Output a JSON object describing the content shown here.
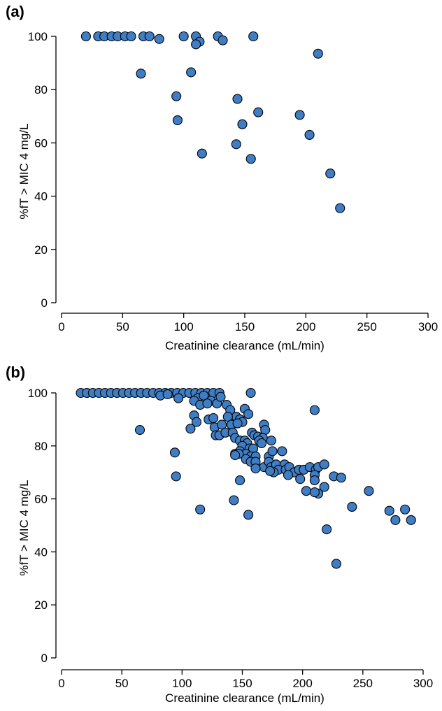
{
  "chart_data": [
    {
      "panel": "(a)",
      "type": "scatter",
      "xlabel": "Creatinine clearance (mL/min)",
      "ylabel": "%fT > MIC 4 mg/L",
      "xlim": [
        0,
        300
      ],
      "ylim": [
        0,
        100
      ],
      "xticks": [
        0,
        50,
        100,
        150,
        200,
        250,
        300
      ],
      "yticks": [
        0,
        20,
        40,
        60,
        80,
        100
      ],
      "grid": false,
      "marker_color": "#3f7ec4",
      "points": [
        [
          20,
          100
        ],
        [
          30,
          100
        ],
        [
          35,
          100
        ],
        [
          41,
          100
        ],
        [
          46,
          100
        ],
        [
          52,
          100
        ],
        [
          57,
          100
        ],
        [
          67,
          100
        ],
        [
          72,
          100
        ],
        [
          80,
          99
        ],
        [
          100,
          100
        ],
        [
          110,
          100
        ],
        [
          128,
          100
        ],
        [
          157,
          100
        ],
        [
          113,
          98
        ],
        [
          110,
          97
        ],
        [
          132,
          98.5
        ],
        [
          210,
          93.5
        ],
        [
          65,
          86
        ],
        [
          106,
          86.5
        ],
        [
          94,
          77.5
        ],
        [
          144,
          76.5
        ],
        [
          161,
          71.5
        ],
        [
          95,
          68.5
        ],
        [
          148,
          67
        ],
        [
          195,
          70.5
        ],
        [
          203,
          63
        ],
        [
          143,
          59.5
        ],
        [
          115,
          56
        ],
        [
          155,
          54
        ],
        [
          220,
          48.5
        ],
        [
          228,
          35.5
        ]
      ]
    },
    {
      "panel": "(b)",
      "type": "scatter",
      "xlabel": "Creatinine clearance (mL/min)",
      "ylabel": "%fT > MIC 4 mg/L",
      "xlim": [
        0,
        300
      ],
      "ylim": [
        0,
        100
      ],
      "xticks": [
        0,
        50,
        100,
        150,
        200,
        250,
        300
      ],
      "yticks": [
        0,
        20,
        40,
        60,
        80,
        100
      ],
      "grid": false,
      "marker_color": "#3f7ec4",
      "points": [
        [
          16,
          100
        ],
        [
          21,
          100
        ],
        [
          26,
          100
        ],
        [
          31,
          100
        ],
        [
          36,
          100
        ],
        [
          41,
          100
        ],
        [
          46,
          100
        ],
        [
          51,
          100
        ],
        [
          56,
          100
        ],
        [
          61,
          100
        ],
        [
          66,
          100
        ],
        [
          71,
          100
        ],
        [
          76,
          100
        ],
        [
          81,
          100
        ],
        [
          86,
          100
        ],
        [
          91,
          100
        ],
        [
          96,
          100
        ],
        [
          101,
          100
        ],
        [
          106,
          100
        ],
        [
          111,
          100
        ],
        [
          116,
          100
        ],
        [
          121,
          100
        ],
        [
          126,
          100
        ],
        [
          131,
          100
        ],
        [
          157,
          100
        ],
        [
          82,
          99
        ],
        [
          88,
          99.5
        ],
        [
          97,
          98
        ],
        [
          113,
          98
        ],
        [
          110,
          97
        ],
        [
          118,
          99
        ],
        [
          124,
          97
        ],
        [
          129,
          96
        ],
        [
          132,
          98.5
        ],
        [
          137,
          95.5
        ],
        [
          115,
          95.5
        ],
        [
          121,
          96
        ],
        [
          140,
          93.5
        ],
        [
          145,
          91
        ],
        [
          152,
          94
        ],
        [
          155,
          92
        ],
        [
          138,
          91
        ],
        [
          110,
          91.5
        ],
        [
          112,
          89
        ],
        [
          122,
          90
        ],
        [
          126,
          90.5
        ],
        [
          148,
          90
        ],
        [
          150,
          89
        ],
        [
          127,
          87
        ],
        [
          133,
          88
        ],
        [
          141,
          88
        ],
        [
          146,
          88.5
        ],
        [
          168,
          88
        ],
        [
          169,
          86
        ],
        [
          107,
          86.5
        ],
        [
          65,
          86
        ],
        [
          128,
          84
        ],
        [
          131,
          84
        ],
        [
          136,
          85
        ],
        [
          142,
          85
        ],
        [
          158,
          85
        ],
        [
          160,
          84
        ],
        [
          163,
          83.5
        ],
        [
          167,
          83
        ],
        [
          144,
          83
        ],
        [
          148,
          82
        ],
        [
          152,
          82
        ],
        [
          154,
          81
        ],
        [
          164,
          82
        ],
        [
          174,
          82
        ],
        [
          150,
          80
        ],
        [
          156,
          79
        ],
        [
          159,
          79
        ],
        [
          166,
          81
        ],
        [
          148,
          78
        ],
        [
          153,
          77
        ],
        [
          157,
          76
        ],
        [
          161,
          76
        ],
        [
          144,
          77
        ],
        [
          147,
          77
        ],
        [
          172,
          76
        ],
        [
          175,
          78
        ],
        [
          183,
          78
        ],
        [
          153,
          75
        ],
        [
          157,
          74
        ],
        [
          161,
          74
        ],
        [
          168,
          72
        ],
        [
          172,
          74
        ],
        [
          174,
          72
        ],
        [
          178,
          73
        ],
        [
          185,
          73
        ],
        [
          180,
          71
        ],
        [
          186,
          71
        ],
        [
          189,
          72
        ],
        [
          193,
          70
        ],
        [
          197,
          71
        ],
        [
          201,
          71
        ],
        [
          206,
          72
        ],
        [
          211,
          71
        ],
        [
          213,
          72
        ],
        [
          218,
          73
        ],
        [
          176,
          70
        ],
        [
          188,
          69
        ],
        [
          210,
          69
        ],
        [
          226,
          68.5
        ],
        [
          232,
          68
        ],
        [
          144,
          76.5
        ],
        [
          161,
          71.5
        ],
        [
          173,
          70.5
        ],
        [
          210,
          67
        ],
        [
          198,
          67.5
        ],
        [
          148,
          67
        ],
        [
          213,
          62
        ],
        [
          203,
          63
        ],
        [
          210,
          62.5
        ],
        [
          218,
          64.5
        ],
        [
          255,
          63
        ],
        [
          241,
          57
        ],
        [
          272,
          55.5
        ],
        [
          285,
          56
        ],
        [
          277,
          52
        ],
        [
          290,
          52
        ],
        [
          210,
          93.5
        ],
        [
          94,
          77.5
        ],
        [
          95,
          68.5
        ],
        [
          143,
          59.5
        ],
        [
          115,
          56
        ],
        [
          155,
          54
        ],
        [
          220,
          48.5
        ],
        [
          228,
          35.5
        ]
      ]
    }
  ]
}
